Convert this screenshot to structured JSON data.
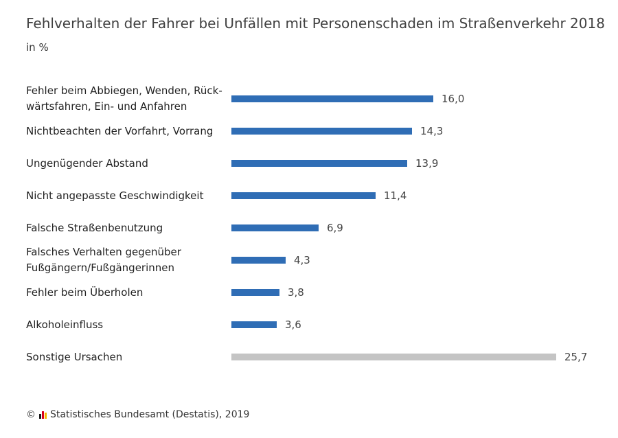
{
  "header": {
    "title": "Fehlverhalten der Fahrer bei Unfällen mit Personenschaden im Straßenverkehr 2018",
    "subtitle": "in %"
  },
  "footer": {
    "copyright_symbol": "©",
    "source": "Statistisches Bundesamt (Destatis), 2019"
  },
  "colors": {
    "primary_bar": "#2f6db5",
    "other_bar": "#c4c4c4",
    "logo": [
      "#1a1a1a",
      "#d9001b",
      "#f5b800"
    ]
  },
  "chart_data": {
    "type": "bar",
    "orientation": "horizontal",
    "title": "Fehlverhalten der Fahrer bei Unfällen mit Personenschaden im Straßenverkehr 2018",
    "subtitle": "in %",
    "xlabel": "",
    "ylabel": "",
    "xlim": [
      0,
      25.7
    ],
    "grid": false,
    "categories": [
      "Fehler beim Abbiegen, Wenden, Rück-wärtsfahren, Ein- und Anfahren",
      "Nichtbeachten der Vorfahrt, Vorrang",
      "Ungenügender Abstand",
      "Nicht angepasste Geschwindigkeit",
      "Falsche Straßenbenutzung",
      "Falsches Verhalten gegenüber Fußgängern/Fußgängerinnen",
      "Fehler beim Überholen",
      "Alkoholeinfluss",
      "Sonstige Ursachen"
    ],
    "values": [
      16.0,
      14.3,
      13.9,
      11.4,
      6.9,
      4.3,
      3.8,
      3.6,
      25.7
    ],
    "value_labels": [
      "16,0",
      "14,3",
      "13,9",
      "11,4",
      "6,9",
      "4,3",
      "3,8",
      "3,6",
      "25,7"
    ],
    "highlight": [
      true,
      true,
      true,
      true,
      true,
      true,
      true,
      true,
      false
    ]
  }
}
